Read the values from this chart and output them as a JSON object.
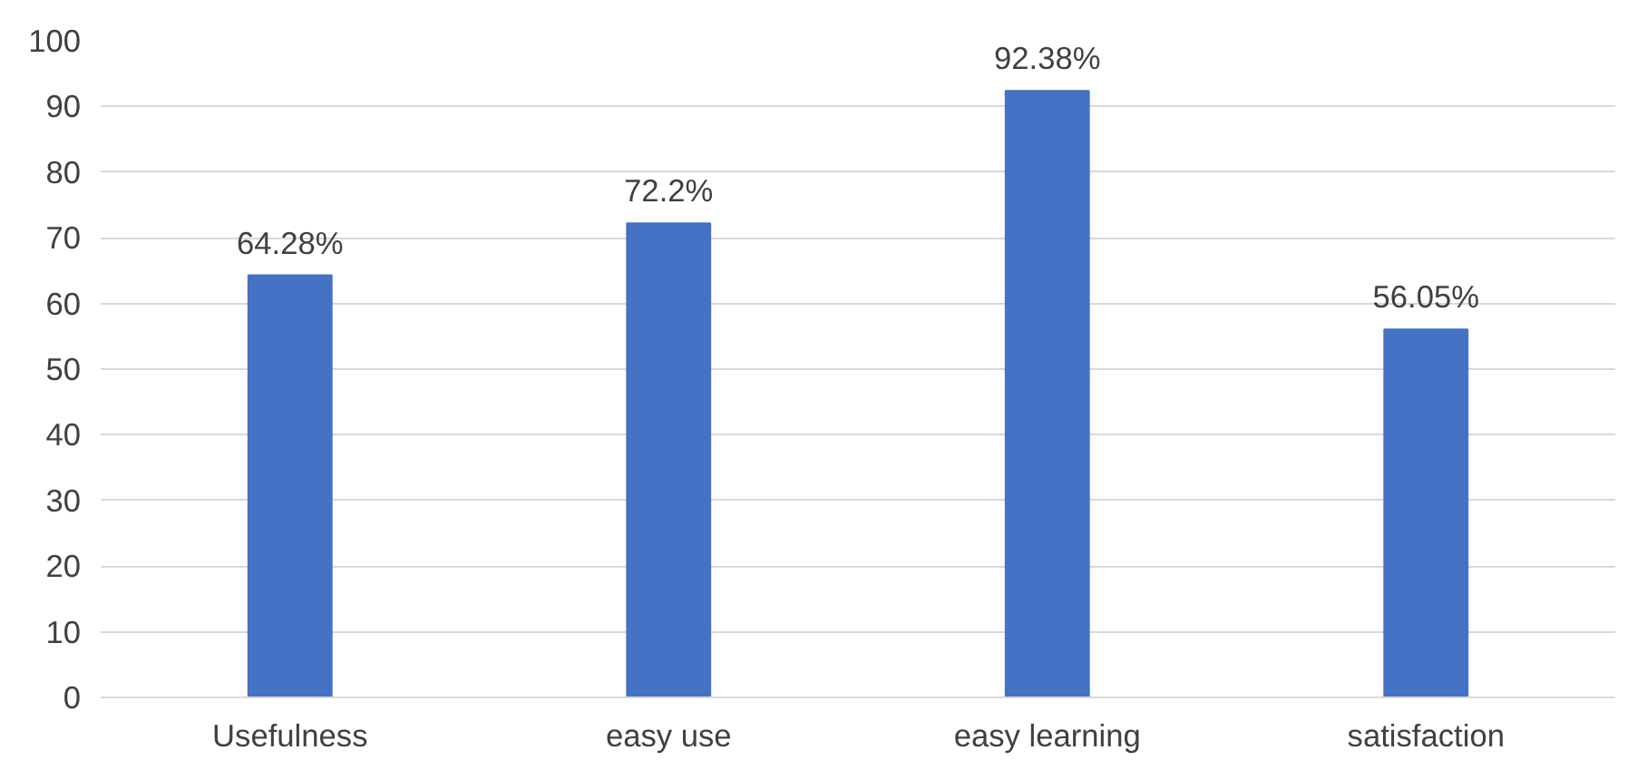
{
  "chart_data": {
    "type": "bar",
    "categories": [
      "Usefulness",
      "easy use",
      "easy learning",
      "satisfaction"
    ],
    "values": [
      64.28,
      72.2,
      92.38,
      56.05
    ],
    "value_labels": [
      "64.28%",
      "72.2%",
      "92.38%",
      "56.05%"
    ],
    "color": "#4472c4",
    "ylim": [
      0,
      100
    ],
    "yticks": [
      0,
      10,
      20,
      30,
      40,
      50,
      60,
      70,
      80,
      90,
      100
    ],
    "grid": "y"
  }
}
